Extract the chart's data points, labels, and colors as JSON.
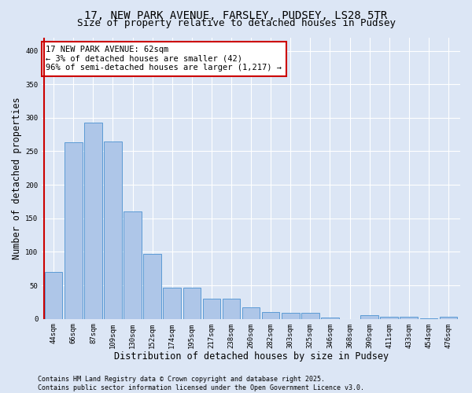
{
  "title_line1": "17, NEW PARK AVENUE, FARSLEY, PUDSEY, LS28 5TR",
  "title_line2": "Size of property relative to detached houses in Pudsey",
  "xlabel": "Distribution of detached houses by size in Pudsey",
  "ylabel": "Number of detached properties",
  "categories": [
    "44sqm",
    "66sqm",
    "87sqm",
    "109sqm",
    "130sqm",
    "152sqm",
    "174sqm",
    "195sqm",
    "217sqm",
    "238sqm",
    "260sqm",
    "282sqm",
    "303sqm",
    "325sqm",
    "346sqm",
    "368sqm",
    "390sqm",
    "411sqm",
    "433sqm",
    "454sqm",
    "476sqm"
  ],
  "values": [
    70,
    263,
    293,
    265,
    160,
    97,
    47,
    47,
    30,
    30,
    17,
    10,
    9,
    9,
    2,
    0,
    5,
    3,
    3,
    1,
    3
  ],
  "bar_color": "#aec6e8",
  "bar_edge_color": "#5b9bd5",
  "background_color": "#dce6f5",
  "grid_color": "#ffffff",
  "annotation_text": "17 NEW PARK AVENUE: 62sqm\n← 3% of detached houses are smaller (42)\n96% of semi-detached houses are larger (1,217) →",
  "annotation_box_color": "#ffffff",
  "annotation_box_edge_color": "#cc0000",
  "vline_color": "#cc0000",
  "ylim": [
    0,
    420
  ],
  "yticks": [
    0,
    50,
    100,
    150,
    200,
    250,
    300,
    350,
    400
  ],
  "footer": "Contains HM Land Registry data © Crown copyright and database right 2025.\nContains public sector information licensed under the Open Government Licence v3.0.",
  "title_fontsize": 10,
  "subtitle_fontsize": 9,
  "tick_fontsize": 6.5,
  "label_fontsize": 8.5,
  "annotation_fontsize": 7.5,
  "footer_fontsize": 6
}
